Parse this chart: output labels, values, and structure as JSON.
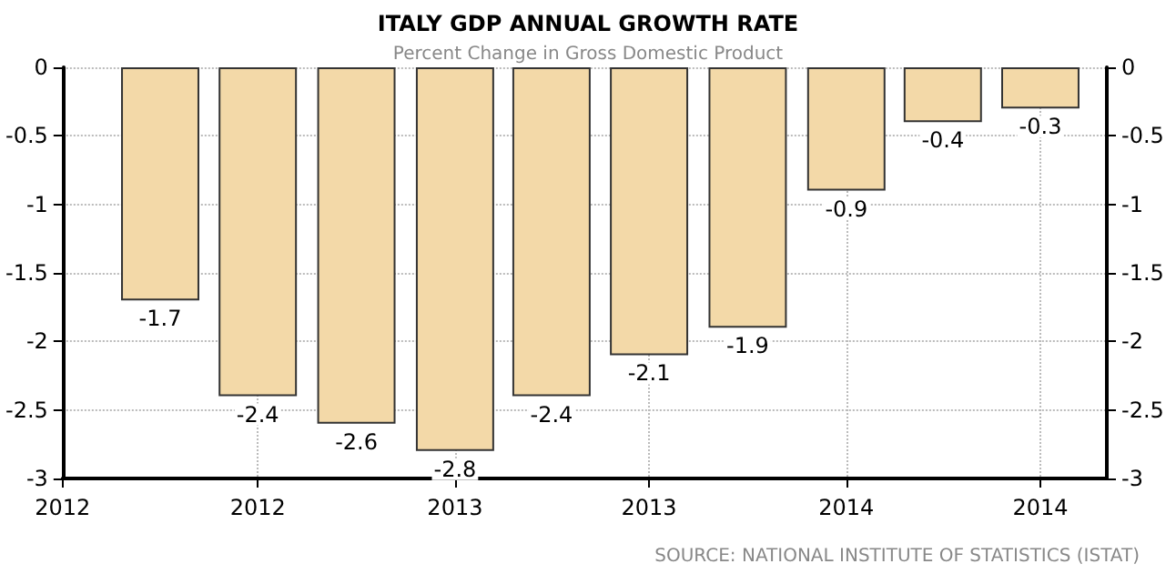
{
  "chart_data": {
    "type": "bar",
    "title": "ITALY GDP ANNUAL GROWTH RATE",
    "subtitle": "Percent Change in Gross Domestic Product",
    "x": [
      "2012-04",
      "2012-07",
      "2012-10",
      "2013-01",
      "2013-04",
      "2013-07",
      "2013-10",
      "2014-01",
      "2014-04",
      "2014-07"
    ],
    "values": [
      -1.7,
      -2.4,
      -2.6,
      -2.8,
      -2.4,
      -2.1,
      -1.9,
      -0.9,
      -0.4,
      -0.3
    ],
    "color": "#f3d9a8",
    "xlim": [
      "2012-01",
      "2014-09"
    ],
    "xticks": [
      {
        "value": "2012-01",
        "label": "2012"
      },
      {
        "value": "2012-07",
        "label": "2012"
      },
      {
        "value": "2013-01",
        "label": "2013"
      },
      {
        "value": "2013-07",
        "label": "2013"
      },
      {
        "value": "2014-01",
        "label": "2014"
      },
      {
        "value": "2014-07",
        "label": "2014"
      }
    ],
    "ylim": [
      -3,
      0
    ],
    "yticks": [
      -3,
      -2.5,
      -2,
      -1.5,
      -1,
      -0.5,
      0
    ],
    "y2lim": [
      -3,
      0
    ],
    "y2ticks": [
      -3,
      -2.5,
      -2,
      -1.5,
      -1,
      -0.5,
      0
    ],
    "grid": true,
    "data_labels": true,
    "annotations": [
      "SOURCE: NATIONAL INSTITUTE OF STATISTICS (ISTAT)"
    ]
  }
}
